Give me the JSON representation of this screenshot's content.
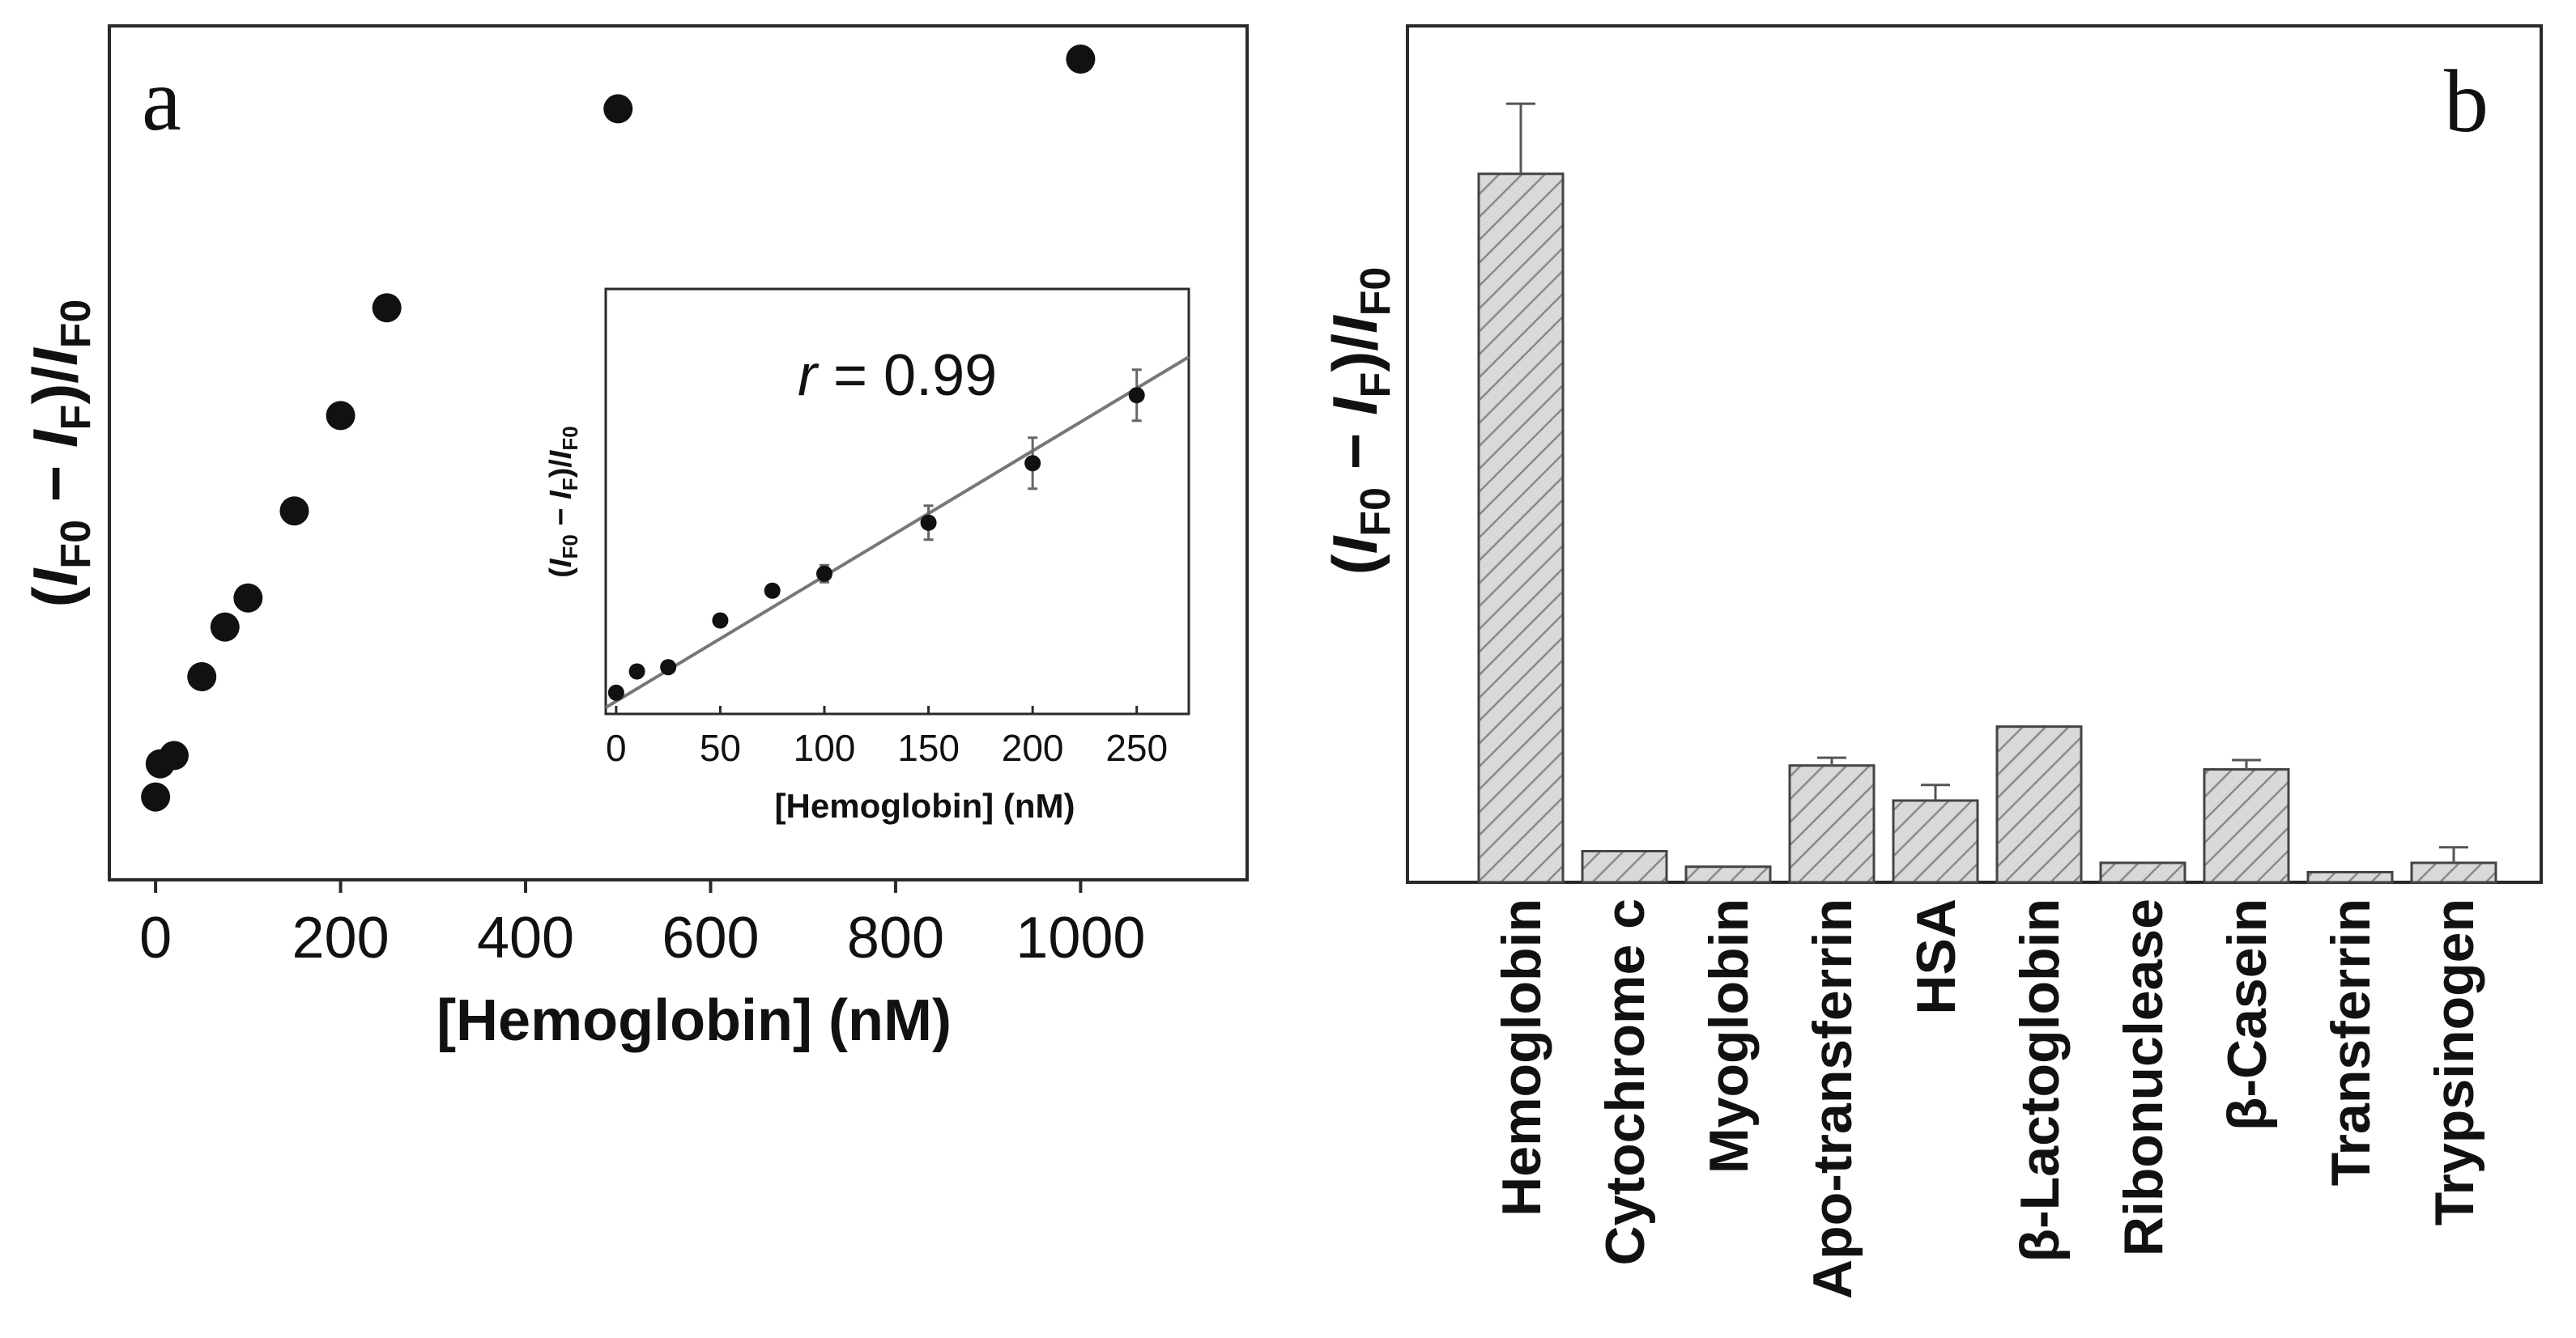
{
  "colors": {
    "ink": "#111111",
    "bar_fill": "#d9d9d9",
    "hatch": "#8a8a8a",
    "fit_line": "#777777",
    "frame": "#2a2a2a"
  },
  "chart_data": [
    {
      "panel": "a",
      "type": "scatter",
      "xlabel": "[Hemoglobin]  (nM)",
      "ylabel": {
        "open": "(",
        "i1": "I",
        "s1": "F0",
        "minus": " − ",
        "i2": "I",
        "s2": "F",
        "close": ")/",
        "i3": "I",
        "s3": "F0"
      },
      "xlim": [
        -50,
        1180
      ],
      "ylim": [
        0,
        1.03
      ],
      "xticks": [
        0,
        200,
        400,
        600,
        800,
        1000
      ],
      "x": [
        0,
        5,
        20,
        50,
        75,
        100,
        150,
        200,
        250,
        500,
        1000
      ],
      "y": [
        0.1,
        0.14,
        0.15,
        0.245,
        0.305,
        0.34,
        0.445,
        0.56,
        0.69,
        0.93,
        0.99
      ]
    },
    {
      "panel": "a-inset",
      "type": "scatter",
      "xlabel": "[Hemoglobin]  (nM)",
      "ylabel": {
        "open": "(",
        "i1": "I",
        "s1": "F0",
        "minus": " − ",
        "i2": "I",
        "s2": "F",
        "close": ")/",
        "i3": "I",
        "s3": "F0"
      },
      "annotation": {
        "var": "r",
        "rest": " = 0.99"
      },
      "xlim": [
        -5,
        275
      ],
      "ylim": [
        0,
        1
      ],
      "xticks": [
        0,
        50,
        100,
        150,
        200,
        250
      ],
      "x": [
        0,
        10,
        25,
        50,
        75,
        100,
        150,
        200,
        250
      ],
      "y": [
        0.05,
        0.1,
        0.11,
        0.22,
        0.29,
        0.33,
        0.45,
        0.59,
        0.75
      ],
      "yerr": [
        0.005,
        0.005,
        0.005,
        0.01,
        0.01,
        0.02,
        0.04,
        0.06,
        0.06
      ],
      "fit": {
        "x0": -5,
        "y0": 0.015,
        "x1": 275,
        "y1": 0.84
      }
    },
    {
      "panel": "b",
      "type": "bar",
      "ylabel": {
        "open": "(",
        "i1": "I",
        "s1": "F0",
        "minus": " − ",
        "i2": "I",
        "s2": "F",
        "close": ")/",
        "i3": "I",
        "s3": "F0"
      },
      "ylim": [
        0,
        1.1
      ],
      "categories": [
        "Hemoglobin",
        "Cytochrome c",
        "Myoglobin",
        "Apo-transferrin",
        "HSA",
        "β-Lactoglobin",
        "Ribonuclease",
        "β-Casein",
        "Transferrin",
        "Trypsinogen"
      ],
      "values": [
        0.91,
        0.04,
        0.02,
        0.15,
        0.105,
        0.2,
        0.025,
        0.145,
        0.013,
        0.025
      ],
      "errors": [
        0.09,
        0.002,
        0.002,
        0.01,
        0.02,
        0.002,
        0.002,
        0.012,
        0.002,
        0.02
      ]
    }
  ],
  "panel_labels": {
    "a": "a",
    "b": "b"
  }
}
